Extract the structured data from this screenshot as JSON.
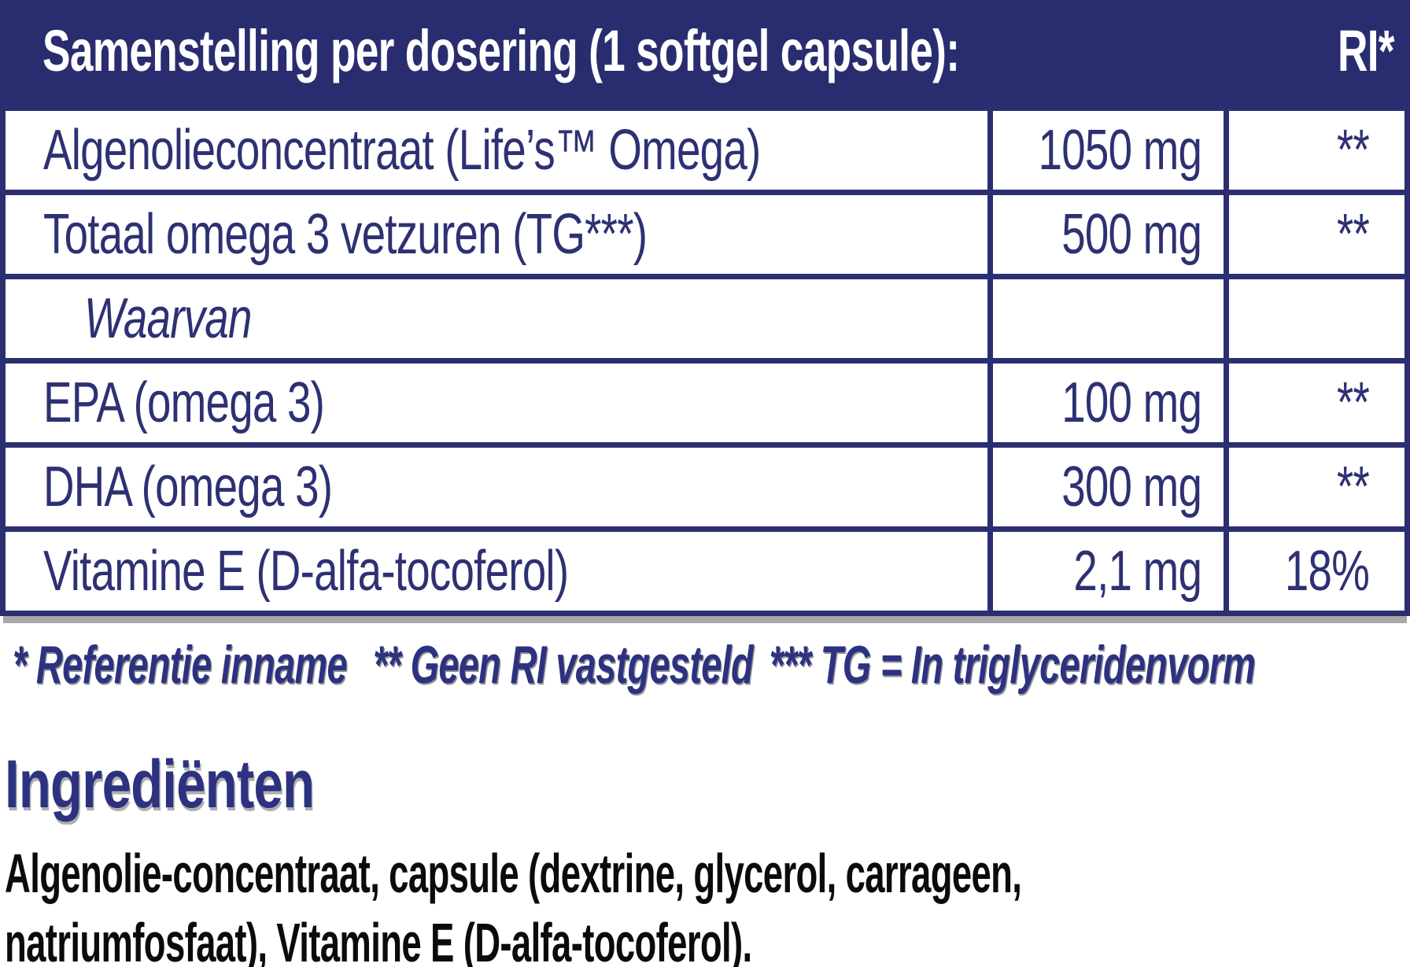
{
  "colors": {
    "header_navy": "#292d6f",
    "border_navy": "#2b2f71",
    "text_navy": "#2d3173",
    "footnote_blue": "#2c3180",
    "ingredients_black": "#0b0b0b",
    "shadow_gray": "#a8a8a8",
    "background": "#ffffff"
  },
  "table": {
    "header": {
      "title": "Samenstelling per dosering (1 softgel capsule):",
      "ri_label": "RI*"
    },
    "rows": [
      {
        "name": "Algenolieconcentraat (Life’s™ Omega)",
        "amount": "1050 mg",
        "ri": "**"
      },
      {
        "name": "Totaal omega 3 vetzuren (TG***)",
        "amount": "500 mg",
        "ri": "**"
      },
      {
        "name": "Waarvan",
        "amount": "",
        "ri": ""
      },
      {
        "name": "EPA (omega 3)",
        "amount": "100 mg",
        "ri": "**"
      },
      {
        "name": "DHA (omega 3)",
        "amount": "300 mg",
        "ri": "**"
      },
      {
        "name": "Vitamine E (D-alfa-tocoferol)",
        "amount": "2,1 mg",
        "ri": "18%"
      }
    ]
  },
  "footnotes": {
    "reference": "* Referentie inname",
    "no_ri": "** Geen RI vastgesteld",
    "tg": "*** TG = In triglyceridenvorm"
  },
  "ingredients": {
    "heading": "Ingrediënten",
    "lines": [
      "Algenolie-concentraat, capsule (dextrine, glycerol, carrageen,",
      "natriumfosfaat), Vitamine E (D-alfa-tocoferol)."
    ]
  }
}
